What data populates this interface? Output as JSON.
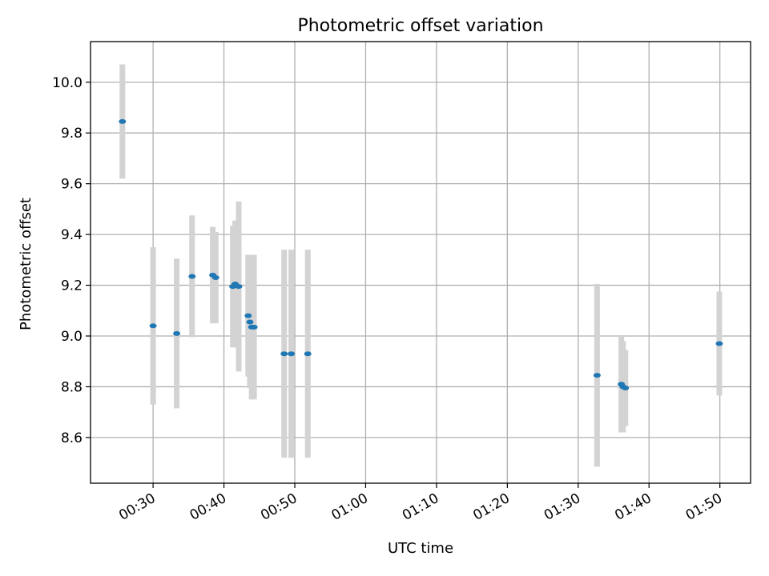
{
  "chart_data": {
    "type": "scatter",
    "title": "Photometric offset variation",
    "xlabel": "UTC time",
    "ylabel": "Photometric offset",
    "grid": true,
    "xlim": [
      "00:21:10",
      "01:54:20"
    ],
    "ylim": [
      8.42,
      10.16
    ],
    "xticks": [
      "00:30",
      "00:40",
      "00:50",
      "01:00",
      "01:10",
      "01:20",
      "01:30",
      "01:40",
      "01:50"
    ],
    "yticks": [
      "8.6",
      "8.8",
      "9.0",
      "9.2",
      "9.4",
      "9.6",
      "9.8",
      "10.0"
    ],
    "colors": {
      "points": "#1f77b4",
      "errorbars": "#d3d3d3",
      "grid": "#b0b0b0"
    },
    "points": [
      {
        "x": "00:25:40",
        "y": 9.845,
        "err": 0.225
      },
      {
        "x": "00:30:00",
        "y": 9.04,
        "err": 0.31
      },
      {
        "x": "00:33:20",
        "y": 9.01,
        "err": 0.295
      },
      {
        "x": "00:35:30",
        "y": 9.235,
        "err": 0.24
      },
      {
        "x": "00:38:25",
        "y": 9.24,
        "err": 0.19
      },
      {
        "x": "00:38:50",
        "y": 9.23,
        "err": 0.18
      },
      {
        "x": "00:41:15",
        "y": 9.195,
        "err": 0.24
      },
      {
        "x": "00:41:35",
        "y": 9.205,
        "err": 0.25
      },
      {
        "x": "00:42:05",
        "y": 9.195,
        "err": 0.335
      },
      {
        "x": "00:43:25",
        "y": 9.08,
        "err": 0.24
      },
      {
        "x": "00:43:40",
        "y": 9.055,
        "err": 0.26
      },
      {
        "x": "00:43:55",
        "y": 9.035,
        "err": 0.285
      },
      {
        "x": "00:44:15",
        "y": 9.035,
        "err": 0.285
      },
      {
        "x": "00:48:30",
        "y": 8.93,
        "err": 0.41
      },
      {
        "x": "00:49:30",
        "y": 8.93,
        "err": 0.41
      },
      {
        "x": "00:51:50",
        "y": 8.93,
        "err": 0.41
      },
      {
        "x": "01:32:40",
        "y": 8.845,
        "err": 0.36
      },
      {
        "x": "01:36:05",
        "y": 8.81,
        "err": 0.19
      },
      {
        "x": "01:36:20",
        "y": 8.8,
        "err": 0.18
      },
      {
        "x": "01:36:40",
        "y": 8.795,
        "err": 0.15
      },
      {
        "x": "01:49:55",
        "y": 8.97,
        "err": 0.205
      }
    ]
  }
}
